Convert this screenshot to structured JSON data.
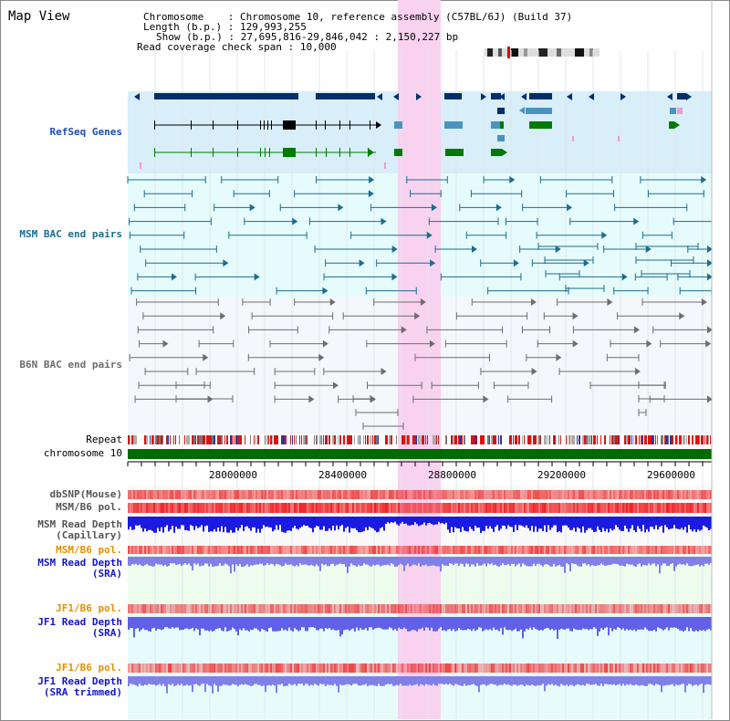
{
  "view": {
    "title": "Map View"
  },
  "info": {
    "chromosome_key": "Chromosome",
    "chromosome_val": "Chromosome 10, reference assembly (C57BL/6J) (Build 37)",
    "length_key": "Length (b.p.)",
    "length_val": "129,993,255",
    "show_key": "Show (b.p.)",
    "show_val": "27,695,816-29,846,042 : 2,150,227 bp",
    "coverage_key": "Read coverage check span",
    "coverage_val": "10,000"
  },
  "tracks": {
    "refseq": "RefSeq Genes",
    "msm_bac": "MSM BAC end pairs",
    "b6n_bac": "B6N BAC end pairs",
    "repeat": "Repeat",
    "chromosome": "chromosome 10",
    "dbsnp": "dbSNP(Mouse)",
    "msm_pol": "MSM/B6 pol.",
    "msm_depth_cap_1": "MSM Read Depth",
    "msm_depth_cap_2": "(Capillary)",
    "msm_pol_sra": "MSM/B6 pol.",
    "msm_depth_sra_1": "MSM Read Depth",
    "msm_depth_sra_2": "(SRA)",
    "jf1_pol": "JF1/B6 pol.",
    "jf1_depth_1": "JF1 Read Depth",
    "jf1_depth_2": "(SRA)",
    "jf1_pol_trim": "JF1/B6 pol.",
    "jf1_trim_1": "JF1 Read Depth",
    "jf1_trim_2": "(SRA trimmed)"
  },
  "axis": {
    "ticks": [
      "28000000",
      "28400000",
      "28800000",
      "29200000",
      "29600000"
    ]
  },
  "colors": {
    "refseq_bg": "#d8eef9",
    "msm_bg": "#e6fbfb",
    "b6n_bg": "#f4f7fb",
    "highlight": "#f8d2ef",
    "chromosome": "#006b00",
    "gene_dark": "#002f6c",
    "gene_mid": "#4a93bf",
    "gene_green": "#007a00"
  }
}
